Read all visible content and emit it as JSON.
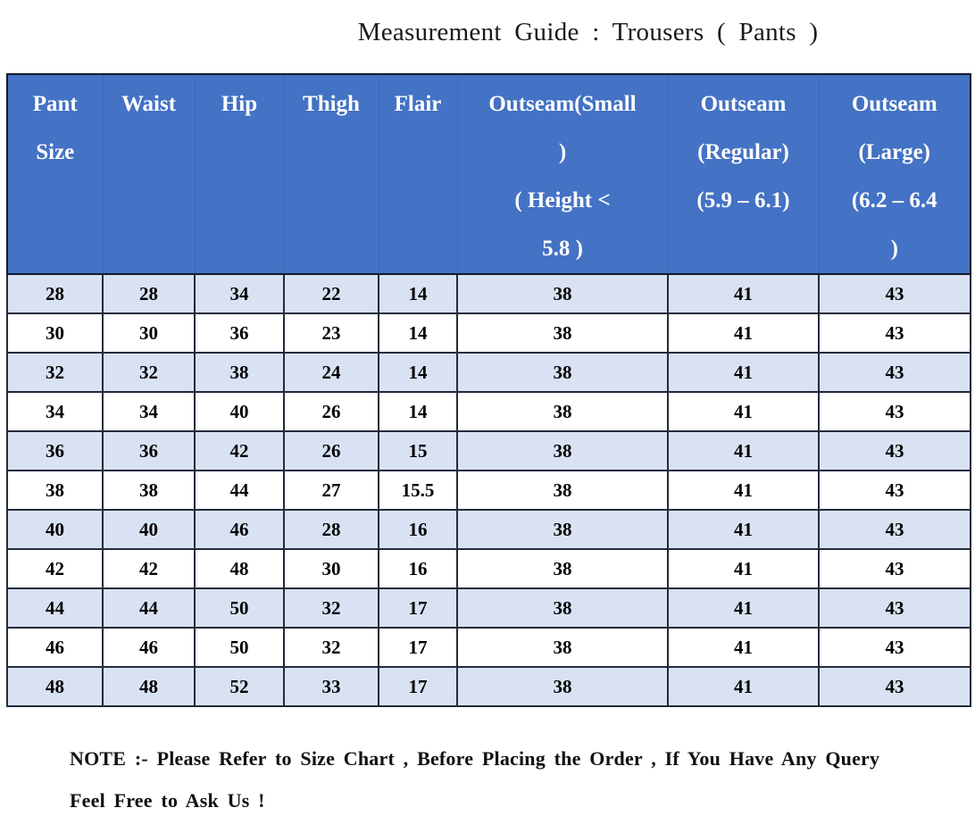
{
  "title": "Measurement Guide : Trousers ( Pants )",
  "colors": {
    "header_bg": "#4472C4",
    "header_text": "#FFFFFF",
    "header_divider": "#3E69B8",
    "row_stripe": "#D9E2F3",
    "row_plain": "#FFFFFF",
    "border_outer": "#14192B",
    "border_inner": "#232A3B"
  },
  "table": {
    "headers": [
      {
        "key": "pant_size",
        "label": "Pant\nSize"
      },
      {
        "key": "waist",
        "label": "Waist"
      },
      {
        "key": "hip",
        "label": "Hip"
      },
      {
        "key": "thigh",
        "label": "Thigh"
      },
      {
        "key": "flair",
        "label": "Flair"
      },
      {
        "key": "outseam_small",
        "label": "Outseam(Small\n)\n( Height <\n5.8 )"
      },
      {
        "key": "outseam_regular",
        "label": "Outseam\n(Regular)\n(5.9 – 6.1)"
      },
      {
        "key": "outseam_large",
        "label": "Outseam\n(Large)\n(6.2 – 6.4\n)"
      }
    ],
    "rows": [
      [
        "28",
        "28",
        "34",
        "22",
        "14",
        "38",
        "41",
        "43"
      ],
      [
        "30",
        "30",
        "36",
        "23",
        "14",
        "38",
        "41",
        "43"
      ],
      [
        "32",
        "32",
        "38",
        "24",
        "14",
        "38",
        "41",
        "43"
      ],
      [
        "34",
        "34",
        "40",
        "26",
        "14",
        "38",
        "41",
        "43"
      ],
      [
        "36",
        "36",
        "42",
        "26",
        "15",
        "38",
        "41",
        "43"
      ],
      [
        "38",
        "38",
        "44",
        "27",
        "15.5",
        "38",
        "41",
        "43"
      ],
      [
        "40",
        "40",
        "46",
        "28",
        "16",
        "38",
        "41",
        "43"
      ],
      [
        "42",
        "42",
        "48",
        "30",
        "16",
        "38",
        "41",
        "43"
      ],
      [
        "44",
        "44",
        "50",
        "32",
        "17",
        "38",
        "41",
        "43"
      ],
      [
        "46",
        "46",
        "50",
        "32",
        "17",
        "38",
        "41",
        "43"
      ],
      [
        "48",
        "48",
        "52",
        "33",
        "17",
        "38",
        "41",
        "43"
      ]
    ]
  },
  "note": "NOTE :- Please Refer to Size Chart , Before Placing the Order , If You Have Any Query Feel Free to Ask Us !"
}
